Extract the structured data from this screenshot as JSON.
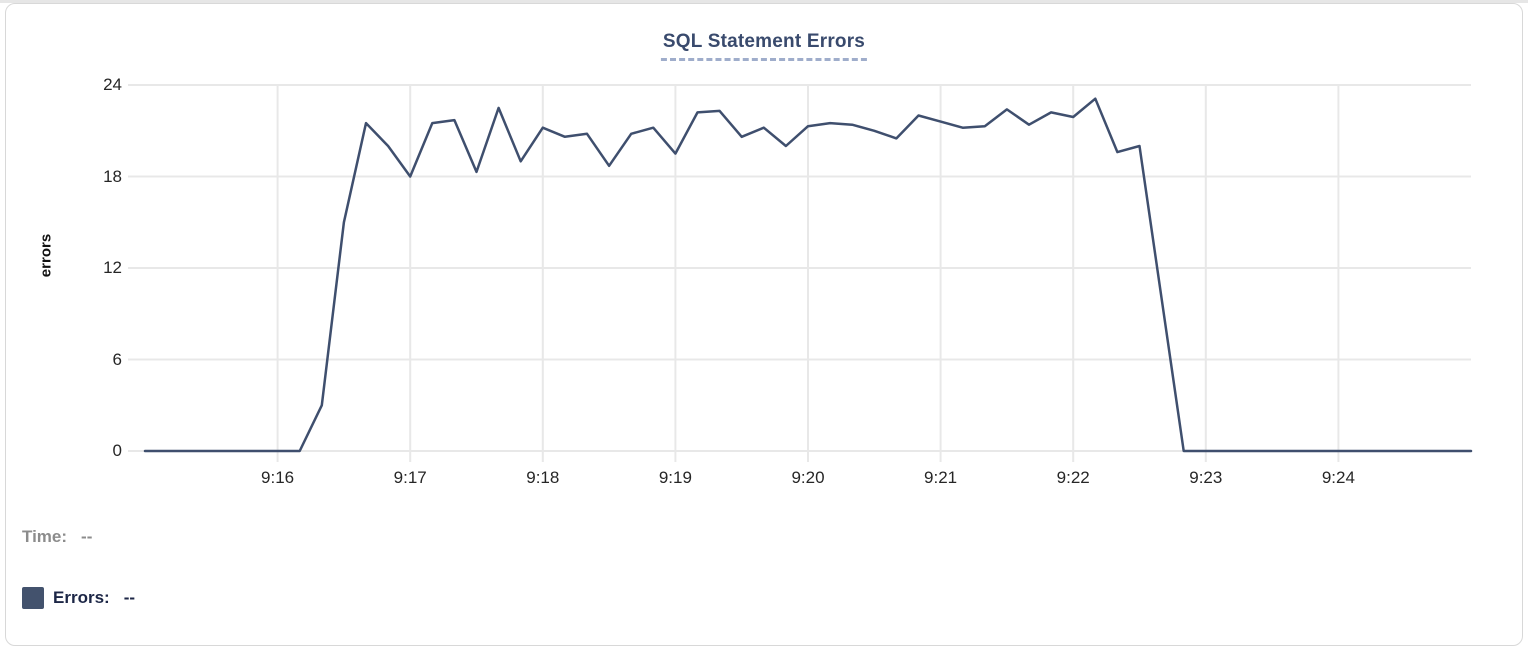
{
  "card": {
    "title": "SQL Statement Errors"
  },
  "tooltip_readout": {
    "time_label": "Time:",
    "time_value": "--",
    "errors_label": "Errors:",
    "errors_value": "--"
  },
  "colors": {
    "line": "#3f4f6e",
    "legend_swatch": "#43526d",
    "title_text": "#394a6d",
    "errors_text": "#1c2646",
    "time_text": "#8c8c8c",
    "grid": "#e8e8e8",
    "axis_text": "#262626"
  },
  "chart_data": {
    "type": "line",
    "title": "SQL Statement Errors",
    "xlabel": "",
    "ylabel": "errors",
    "ylim": [
      0,
      24
    ],
    "y_ticks": [
      0,
      6,
      12,
      18,
      24
    ],
    "x_start": "9:15:00",
    "x_end": "9:25:00",
    "x_interval_seconds": 10,
    "x_tick_labels": [
      "9:16",
      "9:17",
      "9:18",
      "9:19",
      "9:20",
      "9:21",
      "9:22",
      "9:23",
      "9:24"
    ],
    "grid": true,
    "legend_position": "bottom-left",
    "series": [
      {
        "name": "Errors",
        "values": [
          0,
          0,
          0,
          0,
          0,
          0,
          0,
          0,
          3,
          15,
          21.5,
          20,
          18,
          21.5,
          21.7,
          18.3,
          22.5,
          19,
          21.2,
          20.6,
          20.8,
          18.7,
          20.8,
          21.2,
          19.5,
          22.2,
          22.3,
          20.6,
          21.2,
          20,
          21.3,
          21.5,
          21.4,
          21,
          20.5,
          22,
          21.6,
          21.2,
          21.3,
          22.4,
          21.4,
          22.2,
          21.9,
          23.1,
          19.6,
          20,
          10,
          0,
          0,
          0,
          0,
          0,
          0,
          0,
          0,
          0,
          0,
          0,
          0,
          0,
          0
        ]
      }
    ]
  }
}
